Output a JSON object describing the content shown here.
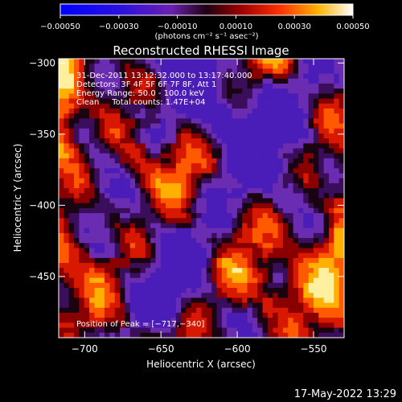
{
  "chart_data": {
    "type": "heatmap",
    "title": "Reconstructed RHESSI Image",
    "xlabel": "Heliocentric X (arcsec)",
    "ylabel": "Heliocentric Y (arcsec)",
    "x_ticks": [
      -700,
      -650,
      -600,
      -550
    ],
    "y_ticks": [
      -300,
      -350,
      -400,
      -450
    ],
    "x_tick_labels": [
      "−700",
      "−650",
      "−600",
      "−550"
    ],
    "y_tick_labels": [
      "−300",
      "−350",
      "−400",
      "−450"
    ],
    "xlim": [
      -717,
      -530
    ],
    "ylim": [
      -493,
      -297
    ],
    "colorbar": {
      "range": [
        -0.0005,
        0.0005
      ],
      "ticks": [
        -0.0005,
        -0.0003,
        -0.0001,
        0.0001,
        0.0003,
        0.0005
      ],
      "tick_labels": [
        "−0.00050",
        "−0.00030",
        "−0.00010",
        "0.00010",
        "0.00030",
        "0.00050"
      ],
      "unit_label": "(photons cm⁻² s⁻¹ asec⁻²)"
    },
    "annotations": [
      "31-Dec-2011 13:12:32.000 to 13:17:40.000",
      "Detectors: 3F 4F 5F 6F 7F 8F, Att 1",
      "Energy Range: 50.0 - 100.0 keV",
      "Clean     Total counts: 1.47E+04"
    ],
    "peak_label": "Position of Peak = [−717,−340]",
    "peak": [
      -717,
      -340
    ],
    "grid": false,
    "legend": "none"
  },
  "footer": {
    "timestamp": "17-May-2022 13:29"
  },
  "colors": {
    "background": "#000000",
    "foreground": "#ffffff"
  }
}
